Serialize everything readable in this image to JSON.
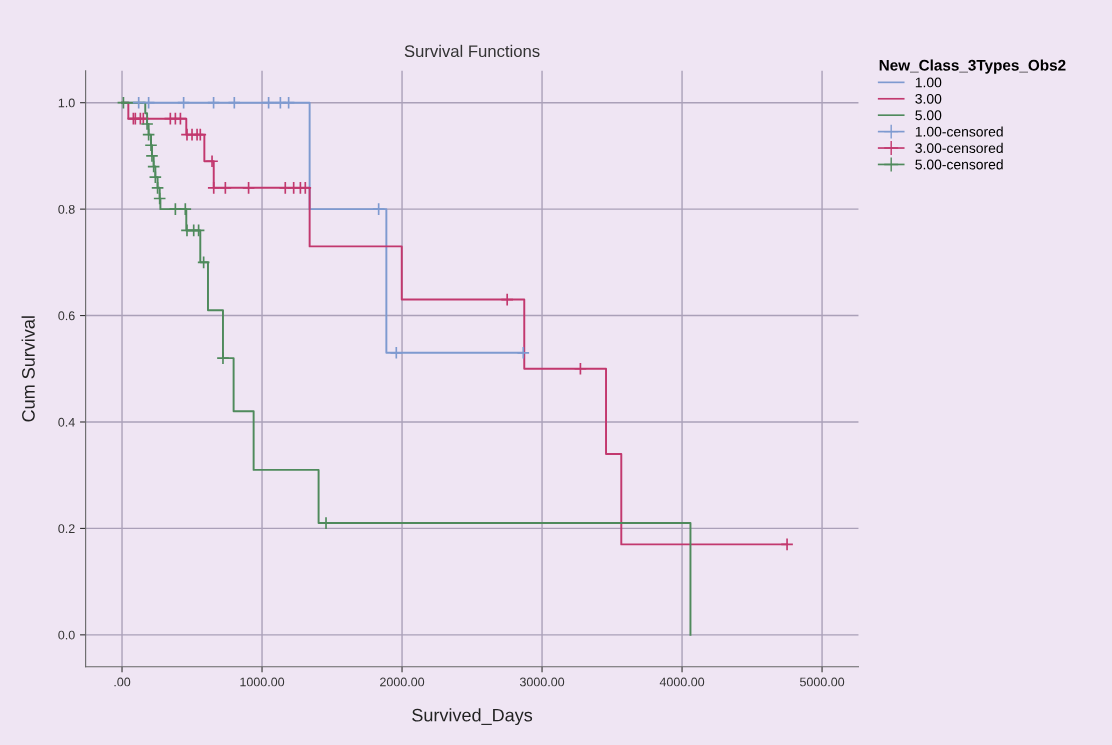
{
  "chart_data": {
    "type": "step",
    "title": "Survival Functions",
    "xlabel": "Survived_Days",
    "ylabel": "Cum Survival",
    "legend_title": "New_Class_3Types_Obs2",
    "xlim": [
      -260,
      5260
    ],
    "ylim": [
      -0.06,
      1.06
    ],
    "xticks": [
      {
        "value": 0,
        "label": ".00"
      },
      {
        "value": 1000,
        "label": "1000.00"
      },
      {
        "value": 2000,
        "label": "2000.00"
      },
      {
        "value": 3000,
        "label": "3000.00"
      },
      {
        "value": 4000,
        "label": "4000.00"
      },
      {
        "value": 5000,
        "label": "5000.00"
      }
    ],
    "yticks": [
      {
        "value": 0,
        "label": "0.0"
      },
      {
        "value": 0.2,
        "label": "0.2"
      },
      {
        "value": 0.4,
        "label": "0.4"
      },
      {
        "value": 0.6,
        "label": "0.6"
      },
      {
        "value": 0.8,
        "label": "0.8"
      },
      {
        "value": 1.0,
        "label": "1.0"
      }
    ],
    "grid": true,
    "legend": "top right",
    "series": [
      {
        "name": "1.00",
        "color": "#7e9ad0",
        "x": [
          0,
          1340,
          1888,
          2866
        ],
        "values": [
          1.0,
          0.8,
          0.53,
          0.53
        ]
      },
      {
        "name": "3.00",
        "color": "#c2386e",
        "x": [
          0,
          45,
          459,
          588,
          655,
          1340,
          1998,
          2873,
          3457,
          3566,
          4750
        ],
        "values": [
          1.0,
          0.97,
          0.94,
          0.89,
          0.84,
          0.73,
          0.63,
          0.5,
          0.34,
          0.17,
          0.17
        ]
      },
      {
        "name": "5.00",
        "color": "#4f8a5c",
        "x": [
          0,
          166,
          179,
          190,
          207,
          214,
          226,
          238,
          254,
          269,
          274,
          459,
          559,
          614,
          721,
          797,
          940,
          1404,
          4060
        ],
        "values": [
          1.0,
          0.98,
          0.96,
          0.94,
          0.92,
          0.9,
          0.88,
          0.86,
          0.84,
          0.82,
          0.8,
          0.76,
          0.7,
          0.61,
          0.52,
          0.42,
          0.31,
          0.21,
          0.0
        ]
      },
      {
        "name": "1.00-censored",
        "type": "scatter",
        "marker": "cross",
        "color": "#7e9ad0",
        "x": [
          119,
          190,
          440,
          654,
          802,
          1047,
          1131,
          1190,
          1833,
          1959,
          2866
        ],
        "values": [
          1.0,
          1.0,
          1.0,
          1.0,
          1.0,
          1.0,
          1.0,
          1.0,
          0.8,
          0.53,
          0.53
        ]
      },
      {
        "name": "3.00-censored",
        "type": "scatter",
        "marker": "cross",
        "color": "#c2386e",
        "x": [
          81,
          95,
          131,
          152,
          345,
          381,
          417,
          464,
          500,
          536,
          559,
          643,
          655,
          738,
          904,
          1166,
          1226,
          1274,
          1309,
          2751,
          3274,
          4750
        ],
        "values": [
          0.97,
          0.97,
          0.97,
          0.97,
          0.97,
          0.97,
          0.97,
          0.94,
          0.94,
          0.94,
          0.94,
          0.89,
          0.84,
          0.84,
          0.84,
          0.84,
          0.84,
          0.84,
          0.84,
          0.63,
          0.5,
          0.17
        ]
      },
      {
        "name": "5.00-censored",
        "type": "scatter",
        "marker": "cross",
        "color": "#4f8a5c",
        "x": [
          10,
          179,
          190,
          207,
          214,
          226,
          238,
          254,
          269,
          381,
          452,
          464,
          512,
          547,
          583,
          721,
          1457
        ],
        "values": [
          1.0,
          0.96,
          0.94,
          0.92,
          0.9,
          0.88,
          0.86,
          0.84,
          0.82,
          0.8,
          0.8,
          0.76,
          0.76,
          0.76,
          0.7,
          0.52,
          0.21
        ]
      }
    ]
  }
}
